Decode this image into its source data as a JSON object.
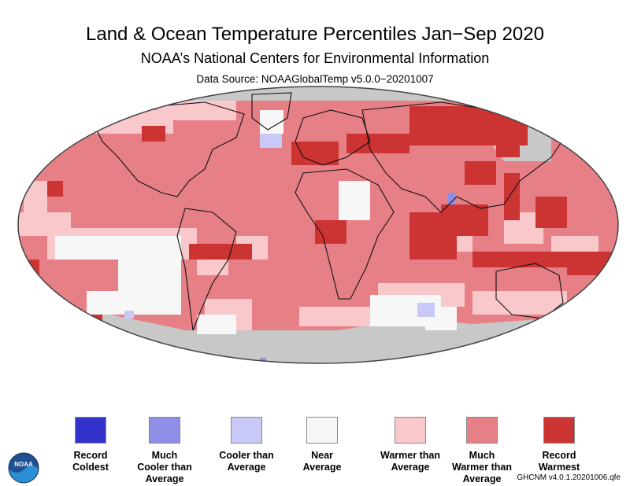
{
  "header": {
    "title": "Land & Ocean Temperature Percentiles Jan−Sep 2020",
    "subtitle": "NOAA’s National Centers for Environmental Information",
    "source": "Data Source: NOAAGlobalTemp v5.0.0−20201007"
  },
  "legend": [
    {
      "label_1": "Record",
      "label_2": "Coldest",
      "label_3": "",
      "color": "#3333cc"
    },
    {
      "label_1": "Much",
      "label_2": "Cooler than",
      "label_3": "Average",
      "color": "#8f8fe8"
    },
    {
      "label_1": "Cooler than",
      "label_2": "Average",
      "label_3": "",
      "color": "#c9c9f7"
    },
    {
      "label_1": "Near",
      "label_2": "Average",
      "label_3": "",
      "color": "#f7f7f7"
    },
    {
      "label_1": "Warmer than",
      "label_2": "Average",
      "label_3": "",
      "color": "#f9c8ca"
    },
    {
      "label_1": "Much",
      "label_2": "Warmer than",
      "label_3": "Average",
      "color": "#e78086"
    },
    {
      "label_1": "Record",
      "label_2": "Warmest",
      "label_3": "",
      "color": "#cc3333"
    }
  ],
  "colors": {
    "missing": "#c8c8c8",
    "record_warmest": "#cc3333",
    "much_warmer": "#e78086",
    "warmer": "#f9c8ca",
    "near": "#f7f7f7",
    "cooler": "#c9c9f7",
    "much_cooler": "#8f8fe8"
  },
  "logo": {
    "icon": "noaa-logo-icon",
    "text": "NOAA"
  },
  "footer": {
    "version": "GHCNM v4.0.1.20201006.qfe"
  }
}
